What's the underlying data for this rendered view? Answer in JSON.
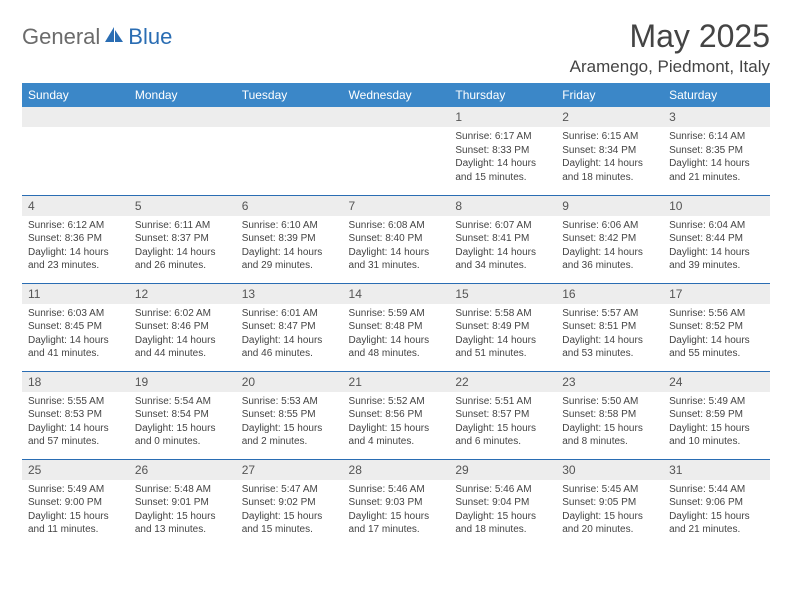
{
  "brand": {
    "part1": "General",
    "part2": "Blue"
  },
  "title": "May 2025",
  "location": "Aramengo, Piedmont, Italy",
  "colors": {
    "header_bg": "#3b87c8",
    "header_text": "#ffffff",
    "row_border": "#2a6db3",
    "daynum_bg": "#ededed",
    "logo_accent": "#2a6db3",
    "logo_gray": "#6b6b6b"
  },
  "layout": {
    "cols": 7,
    "rows": 5,
    "first_weekday_index": 4
  },
  "weekdays": [
    "Sunday",
    "Monday",
    "Tuesday",
    "Wednesday",
    "Thursday",
    "Friday",
    "Saturday"
  ],
  "days": [
    {
      "n": 1,
      "sunrise": "6:17 AM",
      "sunset": "8:33 PM",
      "dl_h": 14,
      "dl_m": 15
    },
    {
      "n": 2,
      "sunrise": "6:15 AM",
      "sunset": "8:34 PM",
      "dl_h": 14,
      "dl_m": 18
    },
    {
      "n": 3,
      "sunrise": "6:14 AM",
      "sunset": "8:35 PM",
      "dl_h": 14,
      "dl_m": 21
    },
    {
      "n": 4,
      "sunrise": "6:12 AM",
      "sunset": "8:36 PM",
      "dl_h": 14,
      "dl_m": 23
    },
    {
      "n": 5,
      "sunrise": "6:11 AM",
      "sunset": "8:37 PM",
      "dl_h": 14,
      "dl_m": 26
    },
    {
      "n": 6,
      "sunrise": "6:10 AM",
      "sunset": "8:39 PM",
      "dl_h": 14,
      "dl_m": 29
    },
    {
      "n": 7,
      "sunrise": "6:08 AM",
      "sunset": "8:40 PM",
      "dl_h": 14,
      "dl_m": 31
    },
    {
      "n": 8,
      "sunrise": "6:07 AM",
      "sunset": "8:41 PM",
      "dl_h": 14,
      "dl_m": 34
    },
    {
      "n": 9,
      "sunrise": "6:06 AM",
      "sunset": "8:42 PM",
      "dl_h": 14,
      "dl_m": 36
    },
    {
      "n": 10,
      "sunrise": "6:04 AM",
      "sunset": "8:44 PM",
      "dl_h": 14,
      "dl_m": 39
    },
    {
      "n": 11,
      "sunrise": "6:03 AM",
      "sunset": "8:45 PM",
      "dl_h": 14,
      "dl_m": 41
    },
    {
      "n": 12,
      "sunrise": "6:02 AM",
      "sunset": "8:46 PM",
      "dl_h": 14,
      "dl_m": 44
    },
    {
      "n": 13,
      "sunrise": "6:01 AM",
      "sunset": "8:47 PM",
      "dl_h": 14,
      "dl_m": 46
    },
    {
      "n": 14,
      "sunrise": "5:59 AM",
      "sunset": "8:48 PM",
      "dl_h": 14,
      "dl_m": 48
    },
    {
      "n": 15,
      "sunrise": "5:58 AM",
      "sunset": "8:49 PM",
      "dl_h": 14,
      "dl_m": 51
    },
    {
      "n": 16,
      "sunrise": "5:57 AM",
      "sunset": "8:51 PM",
      "dl_h": 14,
      "dl_m": 53
    },
    {
      "n": 17,
      "sunrise": "5:56 AM",
      "sunset": "8:52 PM",
      "dl_h": 14,
      "dl_m": 55
    },
    {
      "n": 18,
      "sunrise": "5:55 AM",
      "sunset": "8:53 PM",
      "dl_h": 14,
      "dl_m": 57
    },
    {
      "n": 19,
      "sunrise": "5:54 AM",
      "sunset": "8:54 PM",
      "dl_h": 15,
      "dl_m": 0
    },
    {
      "n": 20,
      "sunrise": "5:53 AM",
      "sunset": "8:55 PM",
      "dl_h": 15,
      "dl_m": 2
    },
    {
      "n": 21,
      "sunrise": "5:52 AM",
      "sunset": "8:56 PM",
      "dl_h": 15,
      "dl_m": 4
    },
    {
      "n": 22,
      "sunrise": "5:51 AM",
      "sunset": "8:57 PM",
      "dl_h": 15,
      "dl_m": 6
    },
    {
      "n": 23,
      "sunrise": "5:50 AM",
      "sunset": "8:58 PM",
      "dl_h": 15,
      "dl_m": 8
    },
    {
      "n": 24,
      "sunrise": "5:49 AM",
      "sunset": "8:59 PM",
      "dl_h": 15,
      "dl_m": 10
    },
    {
      "n": 25,
      "sunrise": "5:49 AM",
      "sunset": "9:00 PM",
      "dl_h": 15,
      "dl_m": 11
    },
    {
      "n": 26,
      "sunrise": "5:48 AM",
      "sunset": "9:01 PM",
      "dl_h": 15,
      "dl_m": 13
    },
    {
      "n": 27,
      "sunrise": "5:47 AM",
      "sunset": "9:02 PM",
      "dl_h": 15,
      "dl_m": 15
    },
    {
      "n": 28,
      "sunrise": "5:46 AM",
      "sunset": "9:03 PM",
      "dl_h": 15,
      "dl_m": 17
    },
    {
      "n": 29,
      "sunrise": "5:46 AM",
      "sunset": "9:04 PM",
      "dl_h": 15,
      "dl_m": 18
    },
    {
      "n": 30,
      "sunrise": "5:45 AM",
      "sunset": "9:05 PM",
      "dl_h": 15,
      "dl_m": 20
    },
    {
      "n": 31,
      "sunrise": "5:44 AM",
      "sunset": "9:06 PM",
      "dl_h": 15,
      "dl_m": 21
    }
  ],
  "labels": {
    "sunrise": "Sunrise:",
    "sunset": "Sunset:",
    "daylight_prefix": "Daylight:",
    "hours": "hours",
    "and": "and",
    "minutes": "minutes."
  }
}
